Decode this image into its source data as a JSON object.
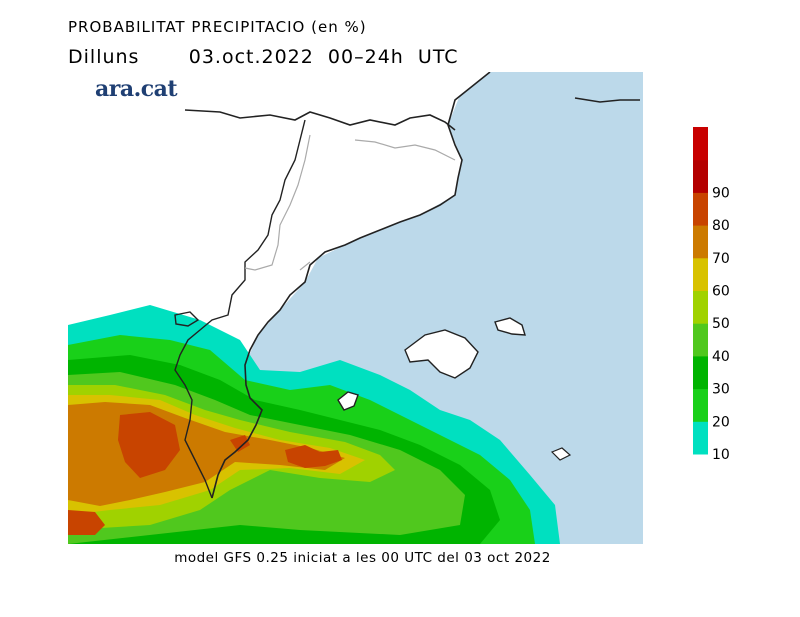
{
  "title": {
    "line1": "PROBABILITAT PRECIPITACIO (en %)",
    "line2": "Dilluns       03.oct.2022  00–24h  UTC"
  },
  "logo": "ara.cat",
  "footer": "model GFS 0.25 iniciat a les 00 UTC del 03 oct 2022",
  "legend": {
    "ticks": [
      "10",
      "20",
      "30",
      "40",
      "50",
      "60",
      "70",
      "80",
      "90"
    ],
    "colors": [
      "#00e0c0",
      "#19d019",
      "#00b400",
      "#50c81e",
      "#a0d200",
      "#d8c200",
      "#cc7a00",
      "#c84400",
      "#b40000",
      "#c80000"
    ]
  },
  "map": {
    "sea_color": "#bcd9ea",
    "land_color": "#ffffff",
    "coast_color": "#222222",
    "border_color": "#aaaaaa"
  }
}
